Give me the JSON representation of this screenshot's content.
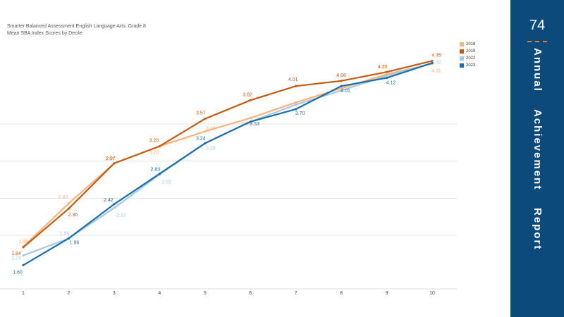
{
  "chart_data": {
    "type": "line",
    "title": "Smarter Balanced Assessment English Language Arts: Grade 8",
    "subtitle": "Mean SBA Index Scores by Decile",
    "x": [
      1,
      2,
      3,
      4,
      5,
      6,
      7,
      8,
      9,
      10
    ],
    "ylim": [
      1.3,
      4.6
    ],
    "grid": true,
    "legend_position": "top-right",
    "series": [
      {
        "name": "2018",
        "color": "#f6b37a",
        "values": [
          1.85,
          2.43,
          2.97,
          3.2,
          3.4,
          3.58,
          3.79,
          3.98,
          4.17,
          4.31
        ],
        "labels": [
          "1.85",
          "2.43",
          "2.97",
          "3.20",
          "3.40",
          "3.58",
          "",
          "",
          "",
          "4.31"
        ]
      },
      {
        "name": "2019",
        "color": "#c55a11",
        "values": [
          1.84,
          2.36,
          2.97,
          3.2,
          3.57,
          3.82,
          4.01,
          4.08,
          4.2,
          4.35
        ],
        "labels": [
          "1.84",
          "2.36",
          "2.97",
          "3.20",
          "3.57",
          "3.82",
          "4.01",
          "4.08",
          "4.20",
          "4.35"
        ]
      },
      {
        "name": "2022",
        "color": "#a6c8e8",
        "values": [
          1.73,
          1.96,
          2.37,
          2.82,
          3.24,
          3.53,
          3.76,
          3.95,
          4.15,
          4.32
        ],
        "labels": [
          "1.73",
          "1.96",
          "2.37",
          "2.82",
          "3.24",
          "",
          "",
          "",
          "",
          "4.32"
        ]
      },
      {
        "name": "2023",
        "color": "#1a6fa8",
        "values": [
          1.6,
          1.96,
          2.42,
          2.83,
          3.24,
          3.53,
          3.7,
          4.01,
          4.12,
          4.32
        ],
        "labels": [
          "1.60",
          "1.96",
          "2.42",
          "2.83",
          "3.24",
          "3.53",
          "3.70",
          "4.01",
          "4.12",
          ""
        ]
      }
    ]
  },
  "sidebar": {
    "page_number": "74",
    "report_title": "Annual    Achievement    Report"
  }
}
